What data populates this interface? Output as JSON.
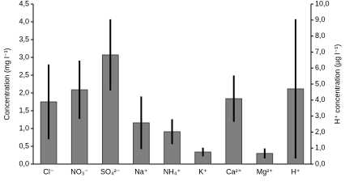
{
  "chart_data": {
    "type": "bar",
    "y_label": "Concentration (mg l⁻¹)",
    "y2_label": "H⁺ concentration (µg l⁻¹)",
    "categories": [
      "Cl⁻",
      "NO₃⁻",
      "SO₄²⁻",
      "Na⁺",
      "NH₄⁺",
      "K⁺",
      "Ca²⁺",
      "Mg²⁺",
      "H⁺"
    ],
    "series": [
      {
        "color": "#7f7f7f",
        "values": [
          1.75,
          2.09,
          3.07,
          1.16,
          0.91,
          0.34,
          1.84,
          0.3,
          null
        ],
        "errors": [
          1.05,
          0.82,
          1.0,
          0.74,
          0.35,
          0.12,
          0.65,
          0.14,
          null
        ]
      },
      {
        "color": "#7f7f7f",
        "axis": "y2",
        "values": [
          null,
          null,
          null,
          null,
          null,
          null,
          null,
          null,
          4.7
        ],
        "errors": [
          null,
          null,
          null,
          null,
          null,
          null,
          null,
          null,
          4.35
        ]
      }
    ],
    "ylim": [
      0,
      4.5
    ],
    "yticks": [
      {
        "value": 0,
        "label": "0,0"
      },
      {
        "value": 0.5,
        "label": "0,5"
      },
      {
        "value": 1,
        "label": "1,0"
      },
      {
        "value": 1.5,
        "label": "1,5"
      },
      {
        "value": 2,
        "label": "2,0"
      },
      {
        "value": 2.5,
        "label": "2,5"
      },
      {
        "value": 3,
        "label": "3,0"
      },
      {
        "value": 3.5,
        "label": "3,5"
      },
      {
        "value": 4,
        "label": "4,0"
      },
      {
        "value": 4.5,
        "label": "4,5"
      }
    ],
    "y2lim": [
      0,
      10
    ],
    "y2ticks": [
      {
        "value": 0,
        "label": "0,0"
      },
      {
        "value": 1,
        "label": "1,0"
      },
      {
        "value": 2,
        "label": "2,0"
      },
      {
        "value": 3,
        "label": "3,0"
      },
      {
        "value": 4,
        "label": "4,0"
      },
      {
        "value": 5,
        "label": "5,0"
      },
      {
        "value": 6,
        "label": "6,0"
      },
      {
        "value": 7,
        "label": "7,0"
      },
      {
        "value": 8,
        "label": "8,0"
      },
      {
        "value": 9,
        "label": "9,0"
      },
      {
        "value": 10,
        "label": "10,0"
      }
    ]
  }
}
